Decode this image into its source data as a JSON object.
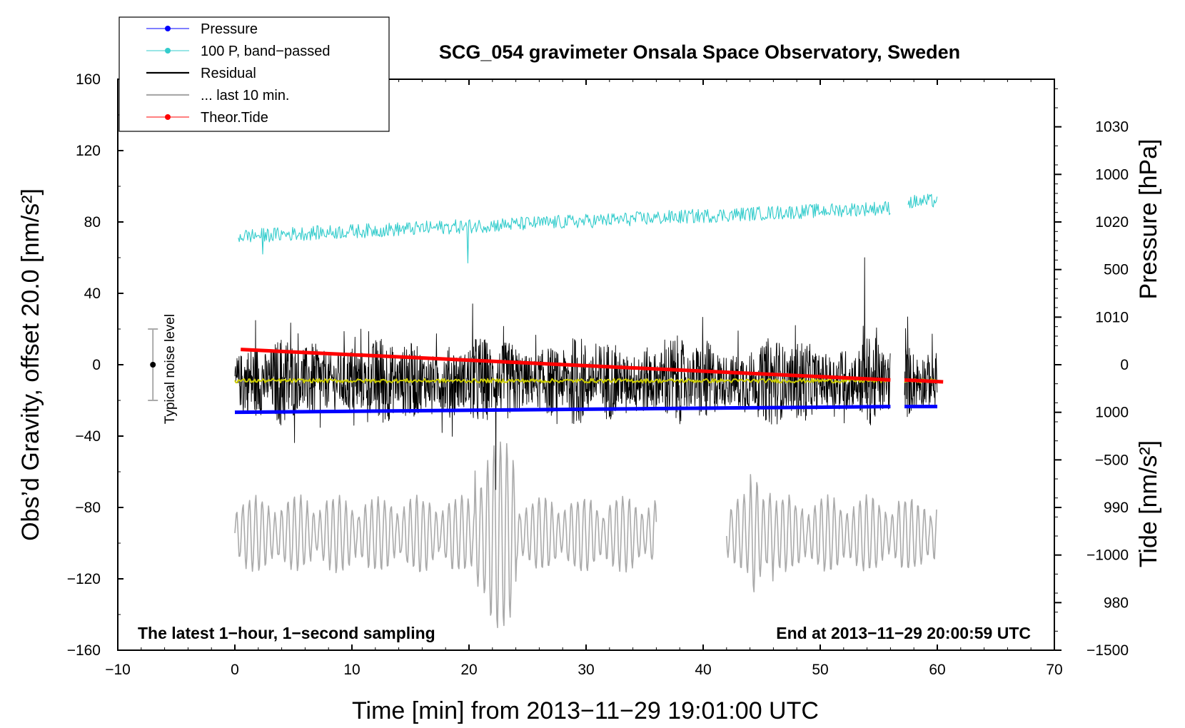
{
  "chart_data": {
    "type": "line",
    "title": "SCG_054 gravimeter Onsala Space Observatory, Sweden",
    "xlabel": "Time [min] from 2013−11−29 19:01:00 UTC",
    "ylabel_left": "Obs’d Gravity, offset 20.0 [nm/s²]",
    "ylabel_right_pressure": "Pressure [hPa]",
    "ylabel_right_tide": "Tide [nm/s²]",
    "xlim": [
      -10,
      70
    ],
    "ylim": [
      -160,
      160
    ],
    "pressure_axis_range": [
      975,
      1035
    ],
    "tide_axis_range": [
      -1500,
      1500
    ],
    "x_ticks": [
      "−10",
      "0",
      "10",
      "20",
      "30",
      "40",
      "50",
      "60",
      "70"
    ],
    "y_ticks_left": [
      "160",
      "120",
      "80",
      "40",
      "0",
      "−40",
      "−80",
      "−120",
      "−160"
    ],
    "y_ticks_pressure": [
      "1030",
      "1020",
      "1010",
      "1000",
      "990",
      "980"
    ],
    "y_ticks_tide": [
      "1000",
      "500",
      "0",
      "−500",
      "−1000",
      "−1500"
    ],
    "annotation_left": "The latest 1−hour, 1−second sampling",
    "annotation_right": "End at 2013−11−29 20:00:59 UTC",
    "noise_label": "Typical noise level",
    "noise_bar": {
      "x": -7,
      "center": 0,
      "half_range": 20
    },
    "legend": [
      {
        "label": "Pressure",
        "color": "#0000ff",
        "marker": true
      },
      {
        "label": "100 P, band−passed",
        "color": "#33cccc",
        "marker": true
      },
      {
        "label": "Residual",
        "color": "#000000",
        "marker": false
      },
      {
        "label": "... last 10 min.",
        "color": "#aaaaaa",
        "marker": false
      },
      {
        "label": "Theor.Tide",
        "color": "#ff0000",
        "marker": true
      }
    ],
    "series": [
      {
        "name": "Pressure",
        "color": "#0000ff",
        "axis": "pressure",
        "unit": "hPa",
        "segments": [
          {
            "x_start": 0,
            "x_end": 56,
            "y_start": 1000.0,
            "y_end": 1000.6
          },
          {
            "x_start": 57.2,
            "x_end": 60,
            "y_start": 1000.6,
            "y_end": 1000.6
          }
        ]
      },
      {
        "name": "100 P, band−passed",
        "color": "#33cccc",
        "axis": "left",
        "segments": [
          {
            "x_start": 0.3,
            "x_end": 56,
            "y_start": 72,
            "y_end": 88,
            "noise_amplitude": 4
          },
          {
            "x_start": 57.5,
            "x_end": 60,
            "y_start": 91,
            "y_end": 92,
            "noise_amplitude": 4
          }
        ]
      },
      {
        "name": "Residual",
        "color": "#000000",
        "axis": "left",
        "segments": [
          {
            "x_start": 0,
            "x_end": 56,
            "y_mean": -9,
            "typical_min": -50,
            "typical_max": 35
          },
          {
            "x_start": 57.2,
            "x_end": 60,
            "y_mean": -9,
            "typical_min": -35,
            "typical_max": 30
          }
        ],
        "extremes": {
          "max": 60,
          "max_at": 53.8,
          "min": -70,
          "min_at": 22.3
        }
      },
      {
        "name": "Residual mean",
        "color": "#cccc00",
        "axis": "left",
        "segments": [
          {
            "x_start": 0,
            "x_end": 56,
            "y": -9
          },
          {
            "x_start": 57.2,
            "x_end": 60,
            "y": -9
          }
        ]
      },
      {
        "name": "... last 10 min.",
        "color": "#aaaaaa",
        "axis": "left",
        "segments": [
          {
            "x_start": 0,
            "x_end": 36,
            "y_center": -95,
            "amplitude": 18
          },
          {
            "x_start": 42,
            "x_end": 60,
            "y_center": -95,
            "amplitude": 18
          }
        ],
        "extremes": {
          "min": -148,
          "min_at": 22.8
        }
      },
      {
        "name": "Theor.Tide",
        "color": "#ff0000",
        "axis": "tide",
        "unit": "nm/s²",
        "segments": [
          {
            "x_start": 0.5,
            "x_end": 56,
            "y_start": 80,
            "y_end": -80
          },
          {
            "x_start": 57.2,
            "x_end": 60.5,
            "y_start": -80,
            "y_end": -90
          }
        ]
      }
    ]
  }
}
